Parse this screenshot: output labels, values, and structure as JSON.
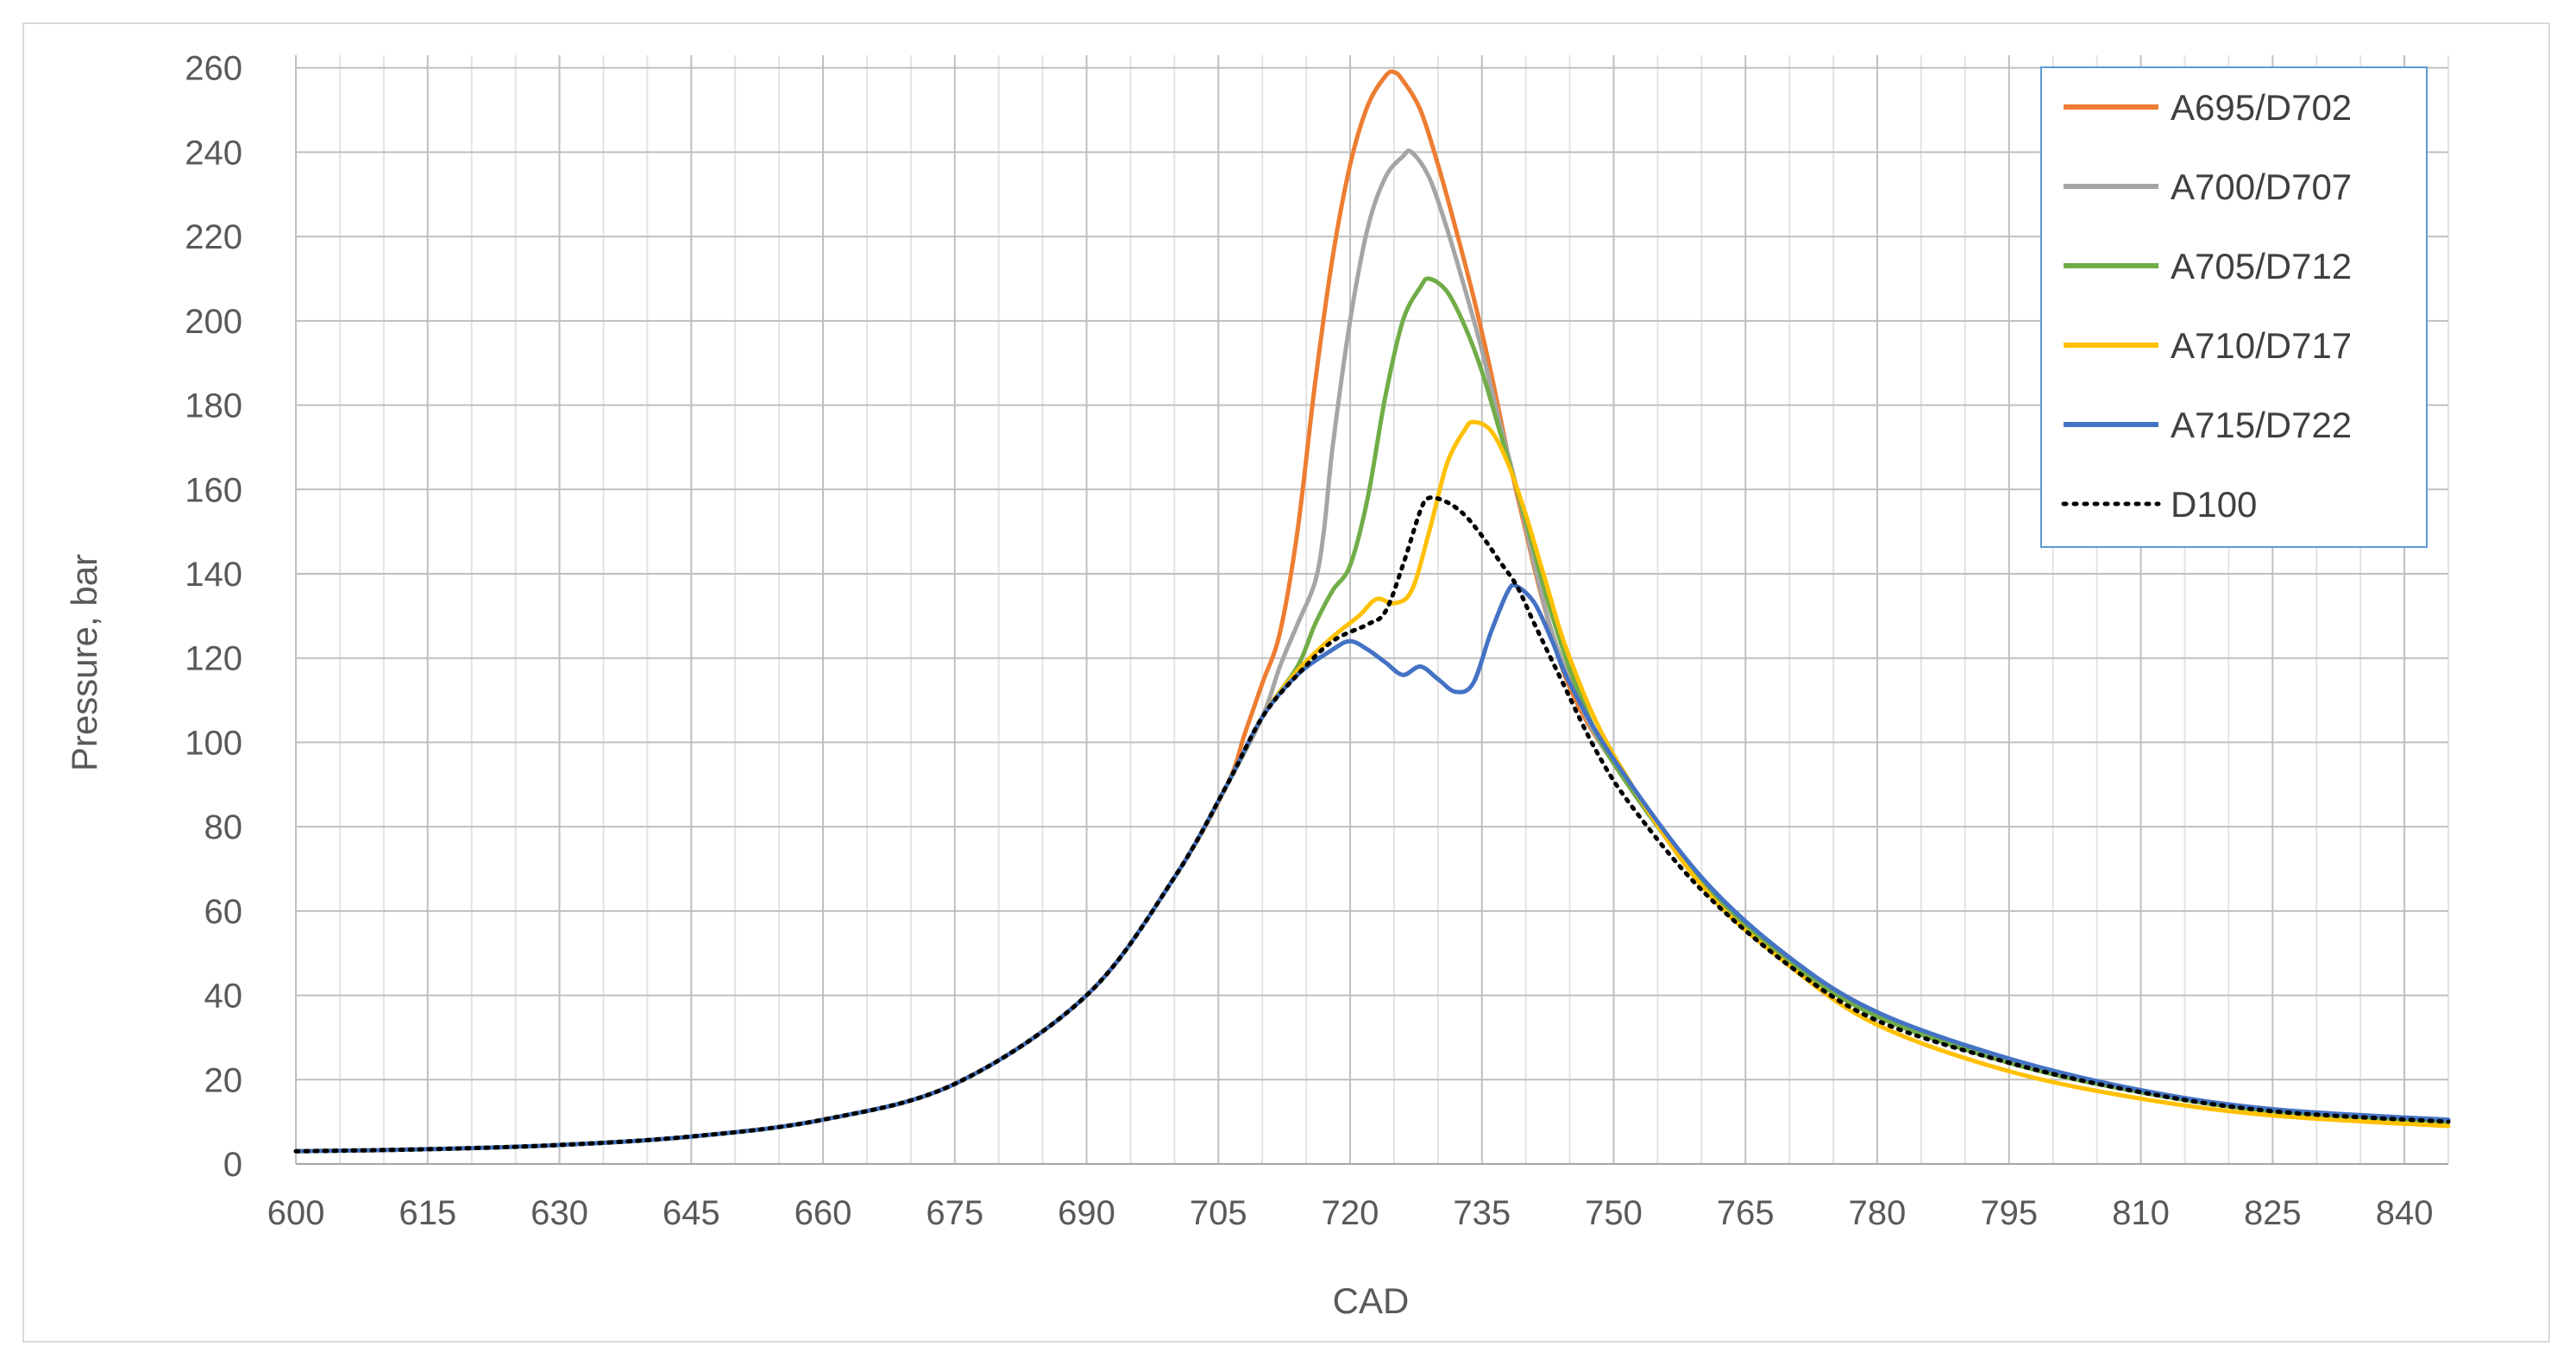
{
  "chart_data": {
    "type": "line",
    "title": "",
    "xlabel": "CAD",
    "ylabel": "Pressure, bar",
    "xlim": [
      600,
      845
    ],
    "ylim": [
      0,
      260
    ],
    "x_ticks": [
      600,
      615,
      630,
      645,
      660,
      675,
      690,
      705,
      720,
      735,
      750,
      765,
      780,
      795,
      810,
      825,
      840
    ],
    "y_ticks": [
      0,
      20,
      40,
      60,
      80,
      100,
      120,
      140,
      160,
      180,
      200,
      220,
      240,
      260
    ],
    "grid": true,
    "legend_position": "top-right",
    "series": [
      {
        "name": "A695/D702",
        "color": "#ED7D31",
        "dash": "solid",
        "points": [
          [
            600,
            3
          ],
          [
            615,
            3.5
          ],
          [
            630,
            4.5
          ],
          [
            645,
            6.5
          ],
          [
            660,
            10.5
          ],
          [
            675,
            19
          ],
          [
            690,
            40
          ],
          [
            700,
            68
          ],
          [
            706,
            90
          ],
          [
            708,
            102
          ],
          [
            710,
            114
          ],
          [
            712,
            126
          ],
          [
            714,
            150
          ],
          [
            716,
            185
          ],
          [
            718,
            215
          ],
          [
            720,
            237
          ],
          [
            722,
            251
          ],
          [
            724,
            258
          ],
          [
            725,
            259
          ],
          [
            726,
            257
          ],
          [
            728,
            250
          ],
          [
            730,
            237
          ],
          [
            732,
            222
          ],
          [
            734,
            206
          ],
          [
            736,
            188
          ],
          [
            738,
            168
          ],
          [
            740,
            150
          ],
          [
            742,
            133
          ],
          [
            745,
            113
          ],
          [
            750,
            95
          ],
          [
            760,
            67
          ],
          [
            770,
            48
          ],
          [
            780,
            35
          ],
          [
            795,
            24
          ],
          [
            810,
            17
          ],
          [
            825,
            12.5
          ],
          [
            845,
            10
          ]
        ]
      },
      {
        "name": "A700/D707",
        "color": "#A5A5A5",
        "dash": "solid",
        "points": [
          [
            600,
            3
          ],
          [
            615,
            3.5
          ],
          [
            630,
            4.5
          ],
          [
            645,
            6.5
          ],
          [
            660,
            10.5
          ],
          [
            675,
            19
          ],
          [
            690,
            40
          ],
          [
            700,
            68
          ],
          [
            706,
            90
          ],
          [
            710,
            106
          ],
          [
            712,
            118
          ],
          [
            714,
            128
          ],
          [
            716,
            138
          ],
          [
            717,
            150
          ],
          [
            718,
            170
          ],
          [
            720,
            200
          ],
          [
            722,
            222
          ],
          [
            724,
            234
          ],
          [
            726,
            239
          ],
          [
            727,
            240
          ],
          [
            729,
            234
          ],
          [
            731,
            222
          ],
          [
            733,
            208
          ],
          [
            735,
            193
          ],
          [
            737,
            176
          ],
          [
            739,
            160
          ],
          [
            741,
            142
          ],
          [
            743,
            126
          ],
          [
            746,
            110
          ],
          [
            750,
            95
          ],
          [
            760,
            67
          ],
          [
            770,
            48
          ],
          [
            780,
            35
          ],
          [
            795,
            24
          ],
          [
            810,
            17
          ],
          [
            825,
            12.5
          ],
          [
            845,
            10
          ]
        ]
      },
      {
        "name": "A705/D712",
        "color": "#70AD47",
        "dash": "solid",
        "points": [
          [
            600,
            3
          ],
          [
            615,
            3.5
          ],
          [
            630,
            4.5
          ],
          [
            645,
            6.5
          ],
          [
            660,
            10.5
          ],
          [
            675,
            19
          ],
          [
            690,
            40
          ],
          [
            700,
            68
          ],
          [
            706,
            90
          ],
          [
            710,
            106
          ],
          [
            714,
            118
          ],
          [
            716,
            128
          ],
          [
            718,
            136
          ],
          [
            720,
            142
          ],
          [
            722,
            158
          ],
          [
            724,
            182
          ],
          [
            726,
            200
          ],
          [
            728,
            208
          ],
          [
            729,
            210
          ],
          [
            731,
            207
          ],
          [
            733,
            199
          ],
          [
            735,
            188
          ],
          [
            737,
            174
          ],
          [
            739,
            160
          ],
          [
            741,
            145
          ],
          [
            743,
            130
          ],
          [
            746,
            112
          ],
          [
            750,
            95
          ],
          [
            760,
            67
          ],
          [
            770,
            48
          ],
          [
            780,
            35
          ],
          [
            795,
            24
          ],
          [
            810,
            17
          ],
          [
            825,
            12.5
          ],
          [
            845,
            10
          ]
        ]
      },
      {
        "name": "A710/D717",
        "color": "#FFC000",
        "dash": "solid",
        "points": [
          [
            600,
            3
          ],
          [
            615,
            3.5
          ],
          [
            630,
            4.5
          ],
          [
            645,
            6.5
          ],
          [
            660,
            10.5
          ],
          [
            675,
            19
          ],
          [
            690,
            40
          ],
          [
            700,
            68
          ],
          [
            706,
            90
          ],
          [
            710,
            106
          ],
          [
            714,
            117
          ],
          [
            718,
            125
          ],
          [
            721,
            130
          ],
          [
            723,
            134
          ],
          [
            725,
            133
          ],
          [
            727,
            136
          ],
          [
            729,
            150
          ],
          [
            731,
            166
          ],
          [
            733,
            174
          ],
          [
            734,
            176
          ],
          [
            736,
            174
          ],
          [
            738,
            166
          ],
          [
            740,
            154
          ],
          [
            742,
            140
          ],
          [
            745,
            120
          ],
          [
            750,
            97
          ],
          [
            760,
            66
          ],
          [
            770,
            47
          ],
          [
            780,
            33
          ],
          [
            795,
            22
          ],
          [
            810,
            15.5
          ],
          [
            825,
            11.5
          ],
          [
            845,
            9
          ]
        ]
      },
      {
        "name": "A715/D722",
        "color": "#4472C4",
        "dash": "solid",
        "points": [
          [
            600,
            3
          ],
          [
            615,
            3.5
          ],
          [
            630,
            4.5
          ],
          [
            645,
            6.5
          ],
          [
            660,
            10.5
          ],
          [
            675,
            19
          ],
          [
            690,
            40
          ],
          [
            700,
            68
          ],
          [
            706,
            90
          ],
          [
            710,
            106
          ],
          [
            714,
            116
          ],
          [
            718,
            122
          ],
          [
            720,
            124
          ],
          [
            722,
            122
          ],
          [
            724,
            119
          ],
          [
            726,
            116
          ],
          [
            728,
            118
          ],
          [
            730,
            115
          ],
          [
            732,
            112
          ],
          [
            734,
            114
          ],
          [
            736,
            126
          ],
          [
            738,
            136
          ],
          [
            739,
            137
          ],
          [
            741,
            133
          ],
          [
            743,
            124
          ],
          [
            745,
            114
          ],
          [
            750,
            96
          ],
          [
            760,
            68
          ],
          [
            770,
            49
          ],
          [
            780,
            36
          ],
          [
            795,
            25
          ],
          [
            810,
            17.5
          ],
          [
            825,
            13
          ],
          [
            845,
            10.5
          ]
        ]
      },
      {
        "name": "D100",
        "color": "#000000",
        "dash": "dotted",
        "points": [
          [
            600,
            3
          ],
          [
            615,
            3.5
          ],
          [
            630,
            4.5
          ],
          [
            645,
            6.5
          ],
          [
            660,
            10.5
          ],
          [
            675,
            19
          ],
          [
            690,
            40
          ],
          [
            700,
            68
          ],
          [
            706,
            90
          ],
          [
            710,
            106
          ],
          [
            714,
            116
          ],
          [
            718,
            124
          ],
          [
            722,
            128
          ],
          [
            724,
            131
          ],
          [
            726,
            142
          ],
          [
            728,
            155
          ],
          [
            729,
            158
          ],
          [
            731,
            157
          ],
          [
            733,
            154
          ],
          [
            735,
            149
          ],
          [
            737,
            143
          ],
          [
            739,
            137
          ],
          [
            741,
            128
          ],
          [
            744,
            115
          ],
          [
            748,
            98
          ],
          [
            752,
            85
          ],
          [
            760,
            65
          ],
          [
            770,
            47
          ],
          [
            780,
            34
          ],
          [
            795,
            24
          ],
          [
            810,
            17
          ],
          [
            825,
            12.5
          ],
          [
            845,
            10
          ]
        ]
      }
    ]
  }
}
